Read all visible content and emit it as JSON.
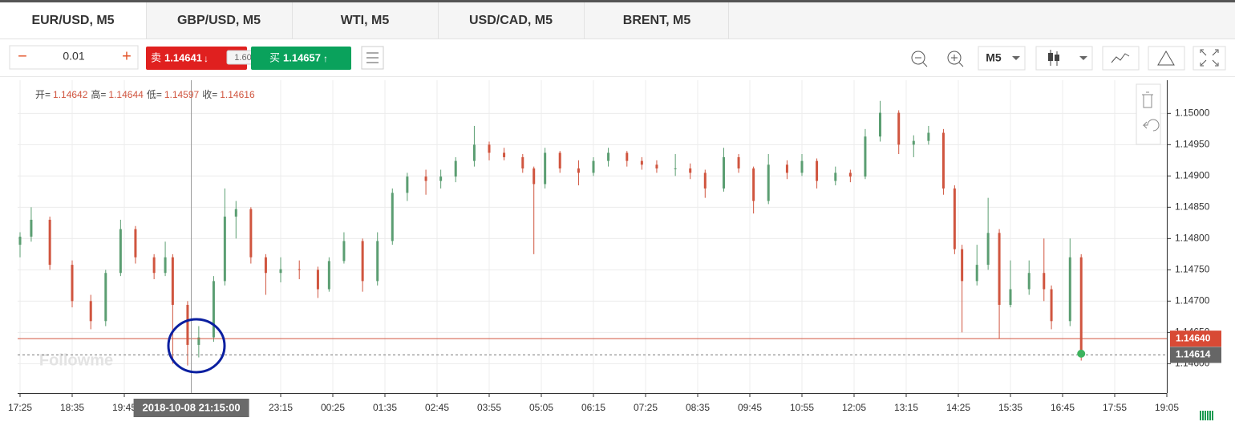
{
  "tabs": [
    "EUR/USD, M5",
    "GBP/USD, M5",
    "WTI, M5",
    "USD/CAD, M5",
    "BRENT, M5"
  ],
  "toolbar": {
    "lot": "0.01",
    "sell_label": "卖",
    "sell_price": "1.14641",
    "spread": "1.60",
    "buy_label": "买",
    "buy_price": "1.14657",
    "timeframe": "M5"
  },
  "ohlc_header": {
    "labels": [
      "开=",
      "高=",
      "低=",
      "收="
    ],
    "values": [
      "1.14642",
      "1.14644",
      "1.14597",
      "1.14616"
    ]
  },
  "watermark": "Followme",
  "chart_data": {
    "type": "candlestick",
    "xlim": [
      0,
      308
    ],
    "ylim": [
      1.14553,
      1.15053
    ],
    "xticks": [
      {
        "value": 0,
        "label": "17:25"
      },
      {
        "value": 14,
        "label": "18:35"
      },
      {
        "value": 28,
        "label": "19:45"
      },
      {
        "value": 70,
        "label": "23:15"
      },
      {
        "value": 84,
        "label": "00:25"
      },
      {
        "value": 98,
        "label": "01:35"
      },
      {
        "value": 112,
        "label": "02:45"
      },
      {
        "value": 126,
        "label": "03:55"
      },
      {
        "value": 140,
        "label": "05:05"
      },
      {
        "value": 154,
        "label": "06:15"
      },
      {
        "value": 168,
        "label": "07:25"
      },
      {
        "value": 182,
        "label": "08:35"
      },
      {
        "value": 196,
        "label": "09:45"
      },
      {
        "value": 210,
        "label": "10:55"
      },
      {
        "value": 224,
        "label": "12:05"
      },
      {
        "value": 238,
        "label": "13:15"
      },
      {
        "value": 252,
        "label": "14:25"
      },
      {
        "value": 266,
        "label": "15:35"
      },
      {
        "value": 280,
        "label": "16:45"
      },
      {
        "value": 294,
        "label": "17:55"
      },
      {
        "value": 308,
        "label": "19:05"
      }
    ],
    "yticks": [
      {
        "value": 1.146,
        "label": "1.14600"
      },
      {
        "value": 1.1465,
        "label": "1.14650"
      },
      {
        "value": 1.147,
        "label": "1.14700"
      },
      {
        "value": 1.1475,
        "label": "1.14750"
      },
      {
        "value": 1.148,
        "label": "1.14800"
      },
      {
        "value": 1.1485,
        "label": "1.14850"
      },
      {
        "value": 1.149,
        "label": "1.14900"
      },
      {
        "value": 1.1495,
        "label": "1.14950"
      },
      {
        "value": 1.15,
        "label": "1.15000"
      }
    ],
    "grid": true,
    "up_color": "#5b9e72",
    "down_color": "#d0553f",
    "crosshair": {
      "value": 46,
      "label": "2018-10-08 21:15:00"
    },
    "last_price": {
      "value": 1.1464,
      "label": "1.14640"
    },
    "close_price": {
      "value": 1.14614,
      "label": "1.14614"
    },
    "x": [
      0,
      3,
      8,
      14,
      19,
      23,
      27,
      31,
      36,
      39,
      41,
      45,
      48,
      52,
      55,
      58,
      62,
      66,
      70,
      75,
      80,
      83,
      87,
      92,
      96,
      100,
      104,
      109,
      113,
      117,
      122,
      126,
      130,
      135,
      138,
      141,
      145,
      150,
      154,
      158,
      163,
      167,
      171,
      176,
      180,
      184,
      189,
      193,
      197,
      201,
      206,
      210,
      214,
      219,
      223,
      227,
      231,
      236,
      240,
      244,
      248,
      251,
      253,
      257,
      260,
      263,
      266,
      271,
      275,
      277,
      282,
      285
    ],
    "open": [
      1.1479,
      1.14803,
      1.1483,
      1.14758,
      1.147,
      1.14668,
      1.14745,
      1.14815,
      1.1477,
      1.14745,
      1.1477,
      1.14694,
      1.1463,
      1.14642,
      1.14732,
      1.14835,
      1.14847,
      1.1477,
      1.14745,
      1.14751,
      1.1475,
      1.14719,
      1.14764,
      1.14796,
      1.14732,
      1.14796,
      1.14873,
      1.14899,
      1.14892,
      1.14899,
      1.14924,
      1.1495,
      1.14937,
      1.1493,
      1.14912,
      1.14887,
      1.14937,
      1.14912,
      1.14905,
      1.14924,
      1.14937,
      1.14924,
      1.14918,
      1.14912,
      1.14912,
      1.14905,
      1.1488,
      1.1493,
      1.14912,
      1.1486,
      1.14918,
      1.14905,
      1.14924,
      1.14892,
      1.14905,
      1.14899,
      1.14963,
      1.15001,
      1.1495,
      1.14956,
      1.14969,
      1.1488,
      1.14783,
      1.14732,
      1.14758,
      1.14809,
      1.14694,
      1.14719,
      1.14745,
      1.14719,
      1.14668,
      1.1477
    ],
    "high": [
      1.1481,
      1.1485,
      1.14835,
      1.14765,
      1.1471,
      1.1475,
      1.1483,
      1.1482,
      1.14775,
      1.14795,
      1.14775,
      1.147,
      1.1466,
      1.1474,
      1.1488,
      1.1486,
      1.1485,
      1.14775,
      1.1477,
      1.14765,
      1.14755,
      1.1477,
      1.1481,
      1.148,
      1.1481,
      1.1488,
      1.14905,
      1.1491,
      1.1491,
      1.1493,
      1.1498,
      1.14955,
      1.14945,
      1.14935,
      1.14915,
      1.14945,
      1.1494,
      1.14925,
      1.1493,
      1.14945,
      1.1494,
      1.1493,
      1.14925,
      1.14935,
      1.1492,
      1.1491,
      1.14945,
      1.14935,
      1.14915,
      1.14935,
      1.14925,
      1.14935,
      1.14928,
      1.14915,
      1.1491,
      1.14975,
      1.1502,
      1.15005,
      1.14965,
      1.1498,
      1.14975,
      1.14885,
      1.1479,
      1.1479,
      1.14865,
      1.14815,
      1.14765,
      1.14765,
      1.148,
      1.14725,
      1.148,
      1.14775
    ],
    "low": [
      1.1477,
      1.14795,
      1.1475,
      1.1469,
      1.14655,
      1.1466,
      1.1474,
      1.1476,
      1.14735,
      1.1474,
      1.146,
      1.14597,
      1.1461,
      1.14635,
      1.14725,
      1.148,
      1.1476,
      1.1471,
      1.1473,
      1.14735,
      1.14705,
      1.14715,
      1.1476,
      1.14715,
      1.14725,
      1.1479,
      1.1486,
      1.1487,
      1.1488,
      1.1489,
      1.14915,
      1.14925,
      1.14925,
      1.14905,
      1.14775,
      1.1488,
      1.14905,
      1.14885,
      1.149,
      1.14915,
      1.14915,
      1.1491,
      1.14905,
      1.149,
      1.14895,
      1.14865,
      1.14875,
      1.14905,
      1.1484,
      1.14855,
      1.14895,
      1.149,
      1.1488,
      1.14885,
      1.1489,
      1.14895,
      1.14955,
      1.14935,
      1.1493,
      1.1495,
      1.1487,
      1.14775,
      1.1465,
      1.14725,
      1.1475,
      1.1464,
      1.1469,
      1.1471,
      1.147,
      1.14655,
      1.1466,
      1.14605
    ],
    "close": [
      1.14803,
      1.1483,
      1.14758,
      1.147,
      1.14668,
      1.14745,
      1.14815,
      1.1477,
      1.14745,
      1.1477,
      1.14694,
      1.1463,
      1.14642,
      1.14732,
      1.14835,
      1.14847,
      1.1477,
      1.14745,
      1.14751,
      1.1475,
      1.14719,
      1.14764,
      1.14796,
      1.14732,
      1.14796,
      1.14873,
      1.14899,
      1.14892,
      1.14899,
      1.14924,
      1.1495,
      1.14937,
      1.1493,
      1.14912,
      1.14887,
      1.14937,
      1.14912,
      1.14905,
      1.14924,
      1.14937,
      1.14924,
      1.14918,
      1.14912,
      1.14912,
      1.14905,
      1.1488,
      1.1493,
      1.14912,
      1.1486,
      1.14918,
      1.14905,
      1.14924,
      1.14892,
      1.14905,
      1.14899,
      1.14963,
      1.15001,
      1.1495,
      1.14956,
      1.14969,
      1.1488,
      1.14783,
      1.14732,
      1.14758,
      1.14809,
      1.14694,
      1.14719,
      1.14745,
      1.14719,
      1.14668,
      1.1477,
      1.14616
    ]
  }
}
